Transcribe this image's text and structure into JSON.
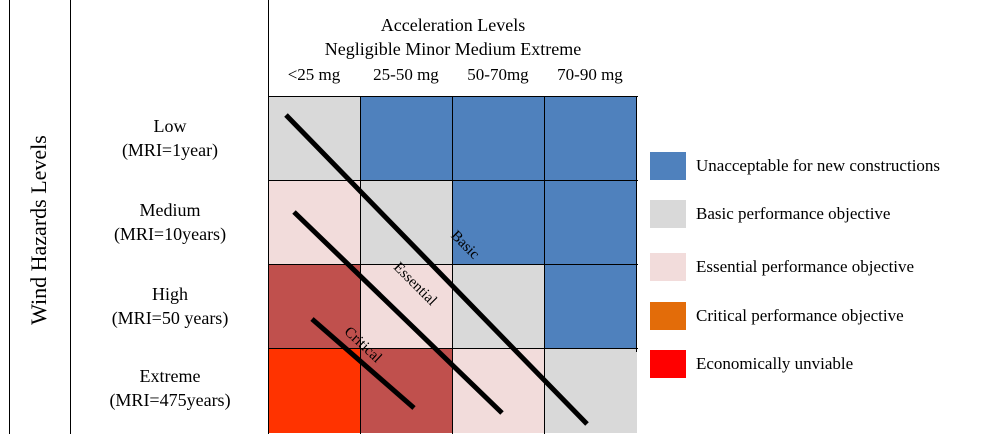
{
  "header": {
    "title": "Acceleration Levels",
    "levels": "Negligible Minor Medium Extreme",
    "columns": [
      "<25 mg",
      "25-50 mg",
      "50-70mg",
      "70-90 mg"
    ]
  },
  "y_axis_title": "Wind Hazards Levels",
  "rows": [
    {
      "line1": "Low",
      "line2": "(MRI=1year)"
    },
    {
      "line1": "Medium",
      "line2": "(MRI=10years)"
    },
    {
      "line1": "High",
      "line2": "(MRI=50 years)"
    },
    {
      "line1": "Extreme",
      "line2": "(MRI=475years)"
    }
  ],
  "colors": {
    "unacceptable": "#4f81bd",
    "basic": "#d9d9d9",
    "essential": "#f2dcdb",
    "critical": "#c0504d",
    "unviable": "#ff3300",
    "legend_critical": "#e36c09",
    "legend_unviable": "#ff0000"
  },
  "grid": [
    [
      "basic",
      "unacceptable",
      "unacceptable",
      "unacceptable"
    ],
    [
      "essential",
      "basic",
      "unacceptable",
      "unacceptable"
    ],
    [
      "critical",
      "essential",
      "basic",
      "unacceptable"
    ],
    [
      "unviable",
      "critical",
      "essential",
      "basic"
    ]
  ],
  "diagonal_labels": {
    "basic": "Basic",
    "essential": "Essential",
    "critical": "Critical"
  },
  "legend": [
    {
      "key": "unacceptable",
      "label": "Unacceptable for new constructions"
    },
    {
      "key": "basic",
      "label": "Basic performance objective"
    },
    {
      "key": "essential",
      "label": "Essential  performance objective"
    },
    {
      "key": "legend_critical",
      "label": "Critical  performance objective"
    },
    {
      "key": "legend_unviable",
      "label": "Economically unviable"
    }
  ]
}
